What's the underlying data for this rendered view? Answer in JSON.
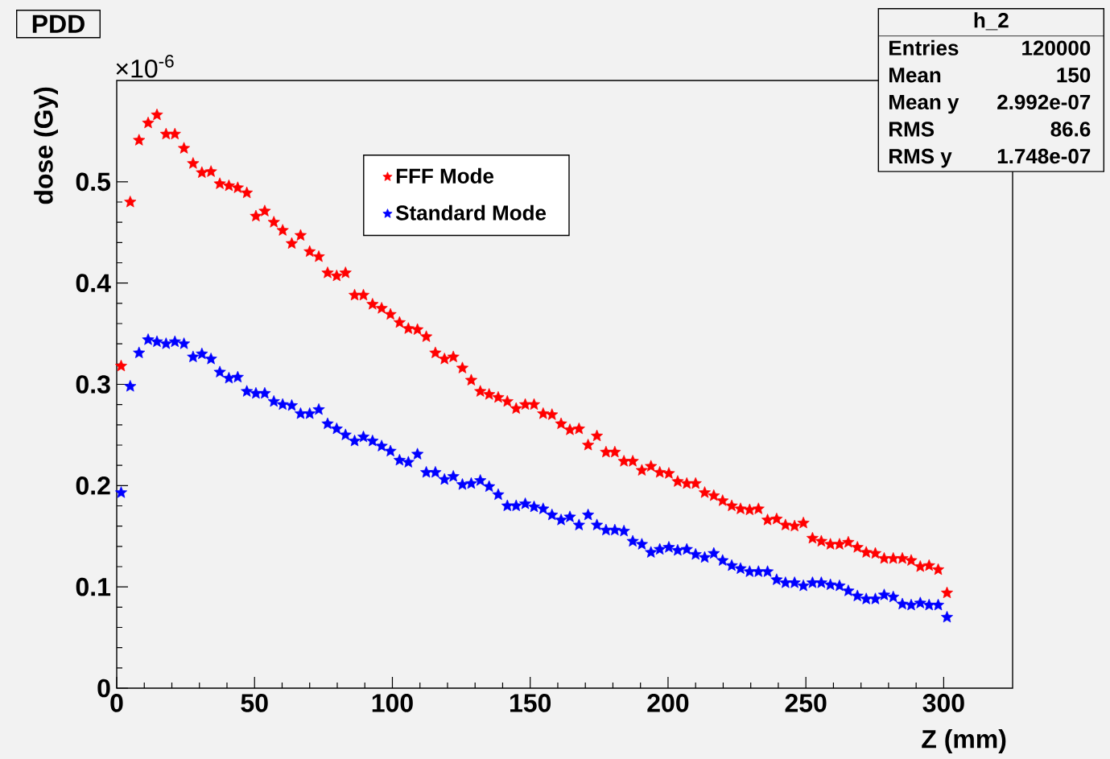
{
  "chart_data": {
    "type": "scatter",
    "title": "PDD",
    "xlabel": "Z (mm)",
    "ylabel": "dose (Gy)",
    "annotations": [
      "×10$^{-6}$",
      "h_2",
      "Entries",
      "120000",
      "Mean",
      "150",
      "Mean y",
      "2.992e-07",
      "RMS",
      "86.6",
      "RMS y",
      "1.748e-07"
    ],
    "x": [
      1.6,
      4.9,
      8.1,
      11.4,
      14.6,
      17.9,
      21.1,
      24.4,
      27.7,
      30.9,
      34.2,
      37.4,
      40.7,
      43.9,
      47.2,
      50.5,
      53.7,
      57.0,
      60.2,
      63.5,
      66.7,
      70.0,
      73.3,
      76.5,
      79.8,
      83.0,
      86.3,
      89.5,
      92.8,
      96.1,
      99.3,
      102.6,
      105.8,
      109.1,
      112.3,
      115.6,
      118.9,
      122.1,
      125.4,
      128.6,
      131.9,
      135.1,
      138.4,
      141.7,
      144.9,
      148.2,
      151.4,
      154.7,
      157.9,
      161.2,
      164.4,
      167.7,
      171.0,
      174.2,
      177.5,
      180.7,
      184.0,
      187.2,
      190.5,
      193.8,
      197.0,
      200.3,
      203.5,
      206.8,
      210.0,
      213.3,
      216.6,
      219.8,
      223.1,
      226.3,
      229.6,
      232.8,
      236.1,
      239.4,
      242.6,
      245.9,
      249.1,
      252.4,
      255.6,
      258.9,
      262.2,
      265.4,
      268.7,
      271.9,
      275.2,
      278.4,
      281.7,
      285.0,
      288.2,
      291.5,
      294.7,
      298.0,
      301.2
    ],
    "series": [
      {
        "name": "FFF Mode",
        "color": "#ff0000",
        "values": [
          0.318,
          0.48,
          0.541,
          0.558,
          0.566,
          0.547,
          0.547,
          0.533,
          0.518,
          0.509,
          0.51,
          0.498,
          0.496,
          0.494,
          0.489,
          0.466,
          0.471,
          0.46,
          0.452,
          0.439,
          0.447,
          0.431,
          0.426,
          0.41,
          0.407,
          0.41,
          0.388,
          0.388,
          0.379,
          0.375,
          0.369,
          0.361,
          0.355,
          0.354,
          0.347,
          0.331,
          0.325,
          0.327,
          0.316,
          0.304,
          0.293,
          0.29,
          0.287,
          0.283,
          0.276,
          0.28,
          0.28,
          0.271,
          0.27,
          0.261,
          0.255,
          0.256,
          0.24,
          0.249,
          0.233,
          0.233,
          0.224,
          0.224,
          0.215,
          0.219,
          0.213,
          0.212,
          0.204,
          0.202,
          0.202,
          0.193,
          0.19,
          0.185,
          0.18,
          0.177,
          0.176,
          0.177,
          0.166,
          0.167,
          0.161,
          0.16,
          0.163,
          0.148,
          0.145,
          0.142,
          0.142,
          0.144,
          0.139,
          0.134,
          0.133,
          0.128,
          0.128,
          0.128,
          0.126,
          0.12,
          0.121,
          0.117,
          0.094
        ]
      },
      {
        "name": "Standard Mode",
        "color": "#0000ff",
        "values": [
          0.193,
          0.298,
          0.331,
          0.344,
          0.342,
          0.34,
          0.342,
          0.34,
          0.327,
          0.33,
          0.325,
          0.312,
          0.306,
          0.307,
          0.293,
          0.291,
          0.291,
          0.283,
          0.28,
          0.279,
          0.271,
          0.271,
          0.275,
          0.261,
          0.256,
          0.25,
          0.244,
          0.248,
          0.244,
          0.239,
          0.234,
          0.225,
          0.223,
          0.231,
          0.213,
          0.213,
          0.206,
          0.209,
          0.201,
          0.202,
          0.205,
          0.199,
          0.191,
          0.18,
          0.18,
          0.182,
          0.179,
          0.177,
          0.171,
          0.166,
          0.169,
          0.161,
          0.171,
          0.161,
          0.156,
          0.156,
          0.155,
          0.145,
          0.142,
          0.134,
          0.137,
          0.139,
          0.136,
          0.137,
          0.132,
          0.129,
          0.133,
          0.126,
          0.121,
          0.118,
          0.115,
          0.115,
          0.115,
          0.107,
          0.104,
          0.104,
          0.101,
          0.104,
          0.104,
          0.102,
          0.101,
          0.096,
          0.091,
          0.088,
          0.088,
          0.092,
          0.09,
          0.083,
          0.082,
          0.084,
          0.082,
          0.082,
          0.07
        ]
      }
    ],
    "xlim": [
      0,
      325
    ],
    "ylim": [
      0,
      0.6
    ],
    "xticks": [
      0,
      50,
      100,
      150,
      200,
      250,
      300
    ],
    "yticks": [
      0,
      0.1,
      0.2,
      0.3,
      0.4,
      0.5
    ],
    "grid": false,
    "legend": "top",
    "marker": "star"
  }
}
